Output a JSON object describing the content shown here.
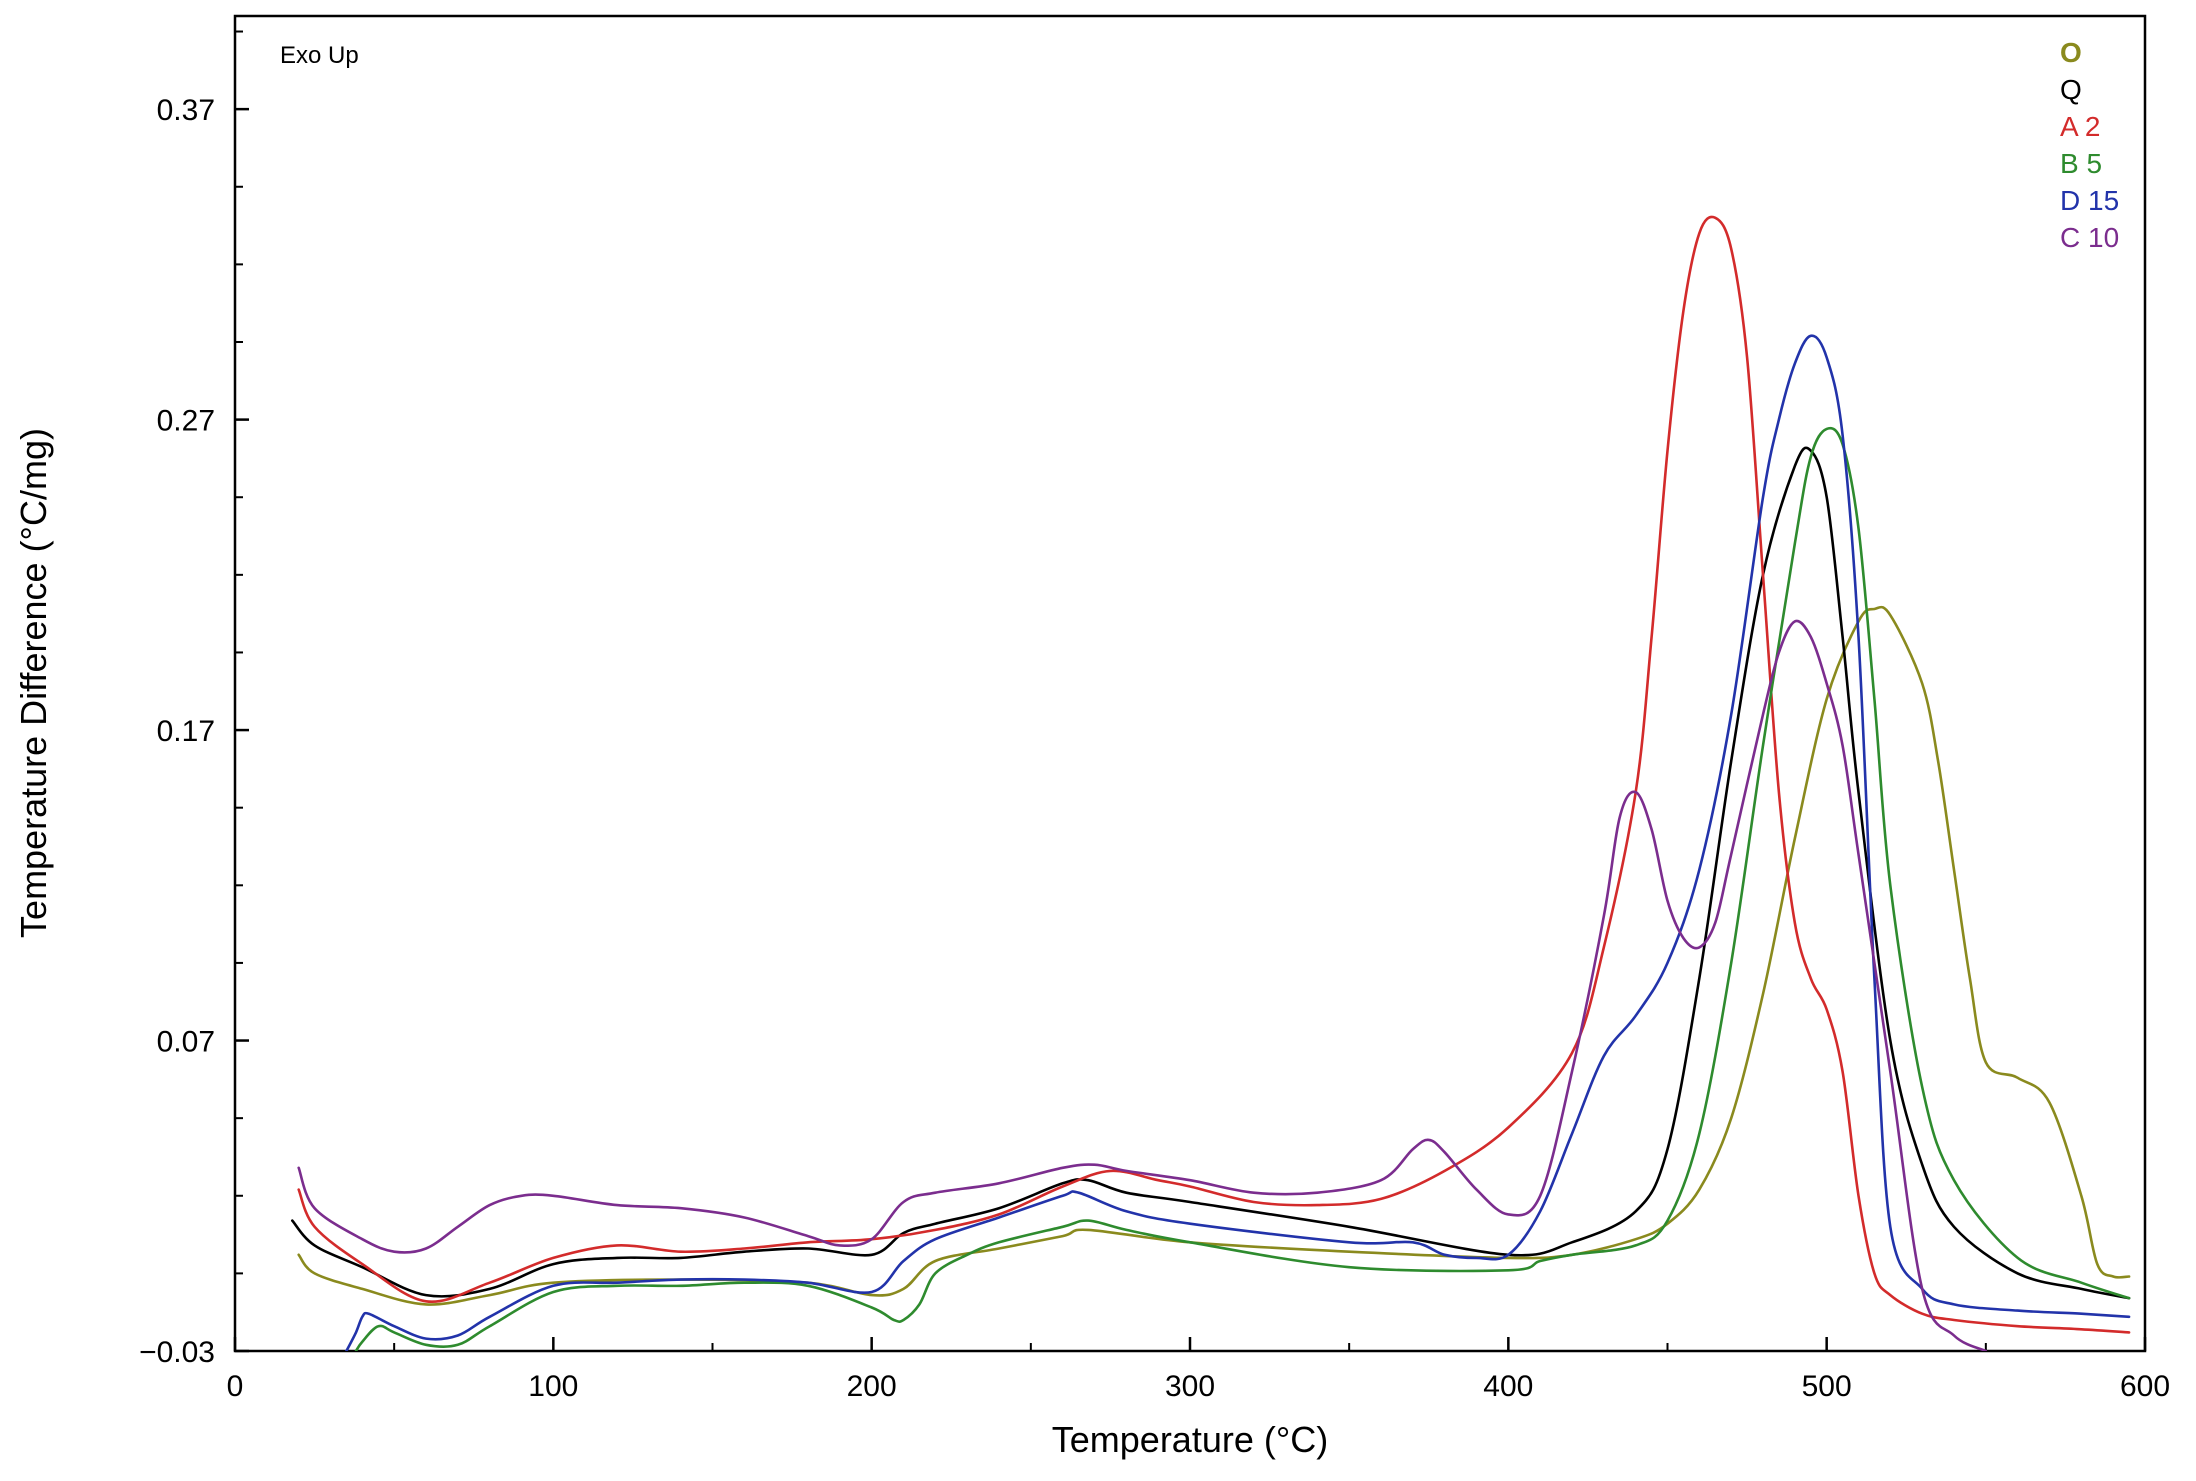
{
  "chart_data": {
    "type": "line",
    "title": "",
    "xlabel": "Temperature (°C)",
    "ylabel": "Temperature Difference (°C/mg)",
    "annotation": "Exo Up",
    "xlim": [
      0,
      600
    ],
    "ylim": [
      -0.03,
      0.4
    ],
    "xticks": [
      0,
      100,
      200,
      300,
      400,
      500,
      600
    ],
    "xtick_labels": [
      "0",
      "100",
      "200",
      "300",
      "400",
      "500",
      "600"
    ],
    "yticks": [
      -0.03,
      0.07,
      0.17,
      0.27,
      0.37
    ],
    "ytick_labels": [
      "−0.03",
      "0.07",
      "0.17",
      "0.27",
      "0.37"
    ],
    "grid": false,
    "legend_position": "top-right",
    "series": [
      {
        "name": "O",
        "color": "#8a8a1e",
        "x": [
          20,
          25,
          40,
          60,
          80,
          100,
          140,
          180,
          200,
          210,
          220,
          240,
          260,
          268,
          300,
          350,
          400,
          420,
          440,
          450,
          460,
          470,
          480,
          490,
          500,
          510,
          515,
          520,
          530,
          535,
          540,
          545,
          550,
          560,
          570,
          580,
          585,
          590,
          595
        ],
        "y": [
          0.001,
          -0.005,
          -0.01,
          -0.015,
          -0.012,
          -0.008,
          -0.007,
          -0.008,
          -0.012,
          -0.01,
          -0.001,
          0.003,
          0.007,
          0.009,
          0.005,
          0.002,
          0.0,
          0.001,
          0.006,
          0.011,
          0.022,
          0.045,
          0.085,
          0.135,
          0.18,
          0.205,
          0.209,
          0.207,
          0.185,
          0.16,
          0.125,
          0.09,
          0.063,
          0.058,
          0.05,
          0.02,
          -0.002,
          -0.006,
          -0.006
        ]
      },
      {
        "name": "Q",
        "color": "#000000",
        "x": [
          18,
          25,
          40,
          60,
          80,
          100,
          120,
          140,
          160,
          180,
          200,
          210,
          220,
          240,
          260,
          268,
          280,
          300,
          350,
          400,
          420,
          440,
          450,
          460,
          470,
          480,
          490,
          495,
          500,
          505,
          510,
          520,
          530,
          540,
          560,
          580,
          595
        ],
        "y": [
          0.012,
          0.004,
          -0.003,
          -0.012,
          -0.01,
          -0.002,
          0.0,
          0.0,
          0.002,
          0.003,
          0.001,
          0.008,
          0.011,
          0.016,
          0.024,
          0.025,
          0.021,
          0.018,
          0.01,
          0.001,
          0.005,
          0.015,
          0.035,
          0.09,
          0.16,
          0.22,
          0.255,
          0.26,
          0.245,
          0.2,
          0.15,
          0.07,
          0.03,
          0.01,
          -0.005,
          -0.01,
          -0.013
        ]
      },
      {
        "name": "A 2",
        "color": "#d32b2b",
        "x": [
          20,
          25,
          40,
          60,
          80,
          100,
          120,
          140,
          160,
          180,
          200,
          220,
          240,
          260,
          275,
          290,
          300,
          320,
          340,
          360,
          380,
          400,
          420,
          430,
          440,
          445,
          450,
          455,
          460,
          465,
          470,
          475,
          480,
          485,
          490,
          495,
          500,
          505,
          510,
          515,
          520,
          530,
          540,
          560,
          580,
          595
        ],
        "y": [
          0.022,
          0.01,
          -0.002,
          -0.014,
          -0.008,
          0.0,
          0.004,
          0.002,
          0.003,
          0.005,
          0.006,
          0.009,
          0.014,
          0.023,
          0.028,
          0.025,
          0.023,
          0.018,
          0.017,
          0.019,
          0.028,
          0.042,
          0.066,
          0.1,
          0.15,
          0.2,
          0.26,
          0.305,
          0.33,
          0.335,
          0.325,
          0.29,
          0.22,
          0.15,
          0.108,
          0.09,
          0.08,
          0.06,
          0.02,
          -0.005,
          -0.012,
          -0.018,
          -0.02,
          -0.022,
          -0.023,
          -0.024
        ]
      },
      {
        "name": "B 5",
        "color": "#2e8b2e",
        "x": [
          38,
          40,
          45,
          50,
          60,
          70,
          80,
          100,
          120,
          140,
          160,
          180,
          200,
          207,
          210,
          215,
          220,
          230,
          240,
          260,
          268,
          280,
          300,
          350,
          400,
          410,
          420,
          440,
          450,
          460,
          470,
          480,
          490,
          495,
          500,
          505,
          510,
          515,
          520,
          530,
          540,
          560,
          580,
          595
        ],
        "y": [
          -0.03,
          -0.027,
          -0.022,
          -0.024,
          -0.028,
          -0.028,
          -0.022,
          -0.011,
          -0.009,
          -0.009,
          -0.008,
          -0.009,
          -0.016,
          -0.02,
          -0.02,
          -0.015,
          -0.005,
          0.001,
          0.005,
          0.01,
          0.012,
          0.009,
          0.005,
          -0.003,
          -0.004,
          -0.001,
          0.001,
          0.004,
          0.012,
          0.04,
          0.095,
          0.165,
          0.23,
          0.258,
          0.267,
          0.262,
          0.235,
          0.18,
          0.12,
          0.055,
          0.025,
          0.0,
          -0.008,
          -0.013
        ]
      },
      {
        "name": "D 15",
        "color": "#2233aa",
        "x": [
          35,
          38,
          40,
          42,
          50,
          60,
          70,
          80,
          100,
          120,
          140,
          160,
          180,
          200,
          210,
          220,
          240,
          260,
          265,
          280,
          300,
          350,
          370,
          380,
          390,
          400,
          410,
          420,
          430,
          440,
          450,
          460,
          470,
          480,
          485,
          490,
          495,
          500,
          505,
          510,
          515,
          520,
          530,
          540,
          560,
          580,
          595
        ],
        "y": [
          -0.03,
          -0.024,
          -0.019,
          -0.018,
          -0.022,
          -0.026,
          -0.025,
          -0.019,
          -0.009,
          -0.008,
          -0.007,
          -0.007,
          -0.008,
          -0.011,
          -0.001,
          0.006,
          0.013,
          0.02,
          0.021,
          0.015,
          0.011,
          0.005,
          0.005,
          0.001,
          0.0,
          0.001,
          0.015,
          0.04,
          0.065,
          0.078,
          0.095,
          0.125,
          0.175,
          0.245,
          0.27,
          0.288,
          0.297,
          0.29,
          0.265,
          0.2,
          0.09,
          0.01,
          -0.01,
          -0.015,
          -0.017,
          -0.018,
          -0.019
        ]
      },
      {
        "name": "C 10",
        "color": "#7b2d8e",
        "x": [
          20,
          25,
          40,
          50,
          60,
          70,
          80,
          90,
          100,
          120,
          140,
          160,
          180,
          190,
          200,
          210,
          220,
          240,
          260,
          270,
          280,
          300,
          320,
          340,
          360,
          370,
          375,
          380,
          390,
          400,
          410,
          420,
          430,
          435,
          440,
          445,
          450,
          455,
          460,
          465,
          470,
          480,
          485,
          490,
          495,
          500,
          505,
          510,
          520,
          530,
          540,
          550
        ],
        "y": [
          0.029,
          0.016,
          0.006,
          0.002,
          0.003,
          0.01,
          0.017,
          0.02,
          0.02,
          0.017,
          0.016,
          0.013,
          0.007,
          0.004,
          0.006,
          0.018,
          0.021,
          0.024,
          0.029,
          0.03,
          0.028,
          0.025,
          0.021,
          0.021,
          0.025,
          0.035,
          0.038,
          0.034,
          0.022,
          0.014,
          0.02,
          0.06,
          0.11,
          0.142,
          0.15,
          0.138,
          0.115,
          0.103,
          0.1,
          0.108,
          0.13,
          0.175,
          0.195,
          0.205,
          0.2,
          0.185,
          0.165,
          0.13,
          0.06,
          -0.01,
          -0.025,
          -0.03
        ]
      }
    ]
  }
}
